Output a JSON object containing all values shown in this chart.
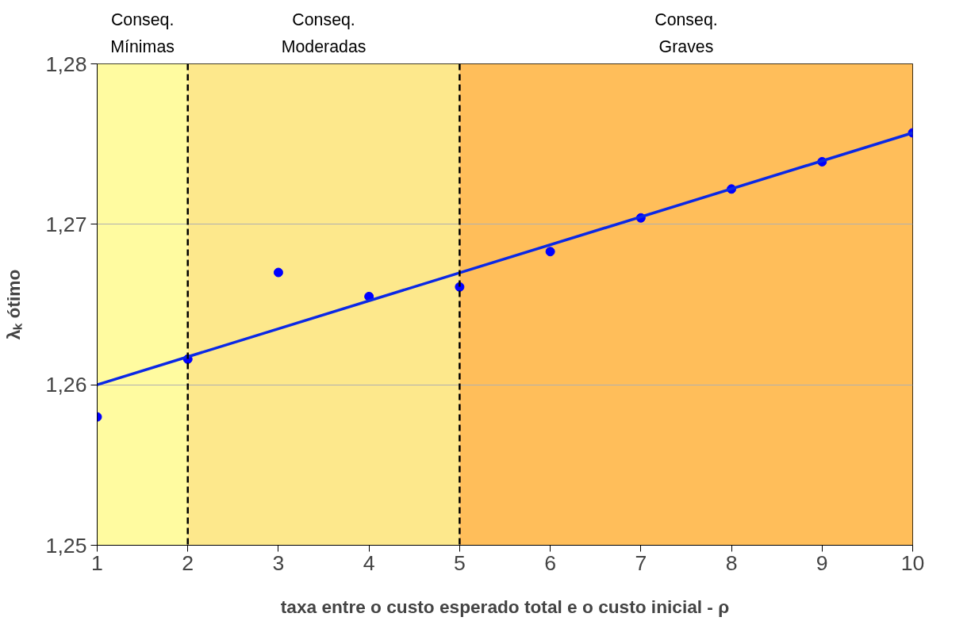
{
  "chart_data": {
    "type": "scatter",
    "xlabel": "taxa entre o custo esperado total e o custo inicial - ρ",
    "ylabel": "λₖ ótimo",
    "x": [
      1,
      2,
      3,
      4,
      5,
      6,
      7,
      8,
      9,
      10
    ],
    "series": [
      {
        "color": "#0000ff",
        "marker": "circle",
        "values": [
          1.258,
          1.2616,
          1.267,
          1.2655,
          1.2661,
          1.2683,
          1.2704,
          1.2722,
          1.2739,
          1.2757
        ]
      },
      {
        "type": "line",
        "color": "#0a28e6",
        "x": [
          1,
          10
        ],
        "values": [
          1.26,
          1.2757
        ]
      }
    ],
    "xlim": [
      1,
      10
    ],
    "ylim": [
      1.25,
      1.28
    ],
    "xticks": [
      1,
      2,
      3,
      4,
      5,
      6,
      7,
      8,
      9,
      10
    ],
    "yticks": [
      {
        "value": 1.25,
        "label": "1,25"
      },
      {
        "value": 1.26,
        "label": "1,26"
      },
      {
        "value": 1.27,
        "label": "1,27"
      },
      {
        "value": 1.28,
        "label": "1,28"
      }
    ],
    "grid": "y",
    "ref_lines": [
      {
        "axis": "x",
        "value": 2,
        "color": "#000000",
        "line_style": "dashed"
      },
      {
        "axis": "x",
        "value": 5,
        "color": "#000000",
        "line_style": "dashed"
      }
    ],
    "bands": [
      {
        "axis": "x",
        "from": 1,
        "to": 2,
        "label": "Conseq.\nMínimas",
        "color": "#fffba0"
      },
      {
        "axis": "x",
        "from": 2,
        "to": 5,
        "label": "Conseq.\nModeradas",
        "color": "#fde88c"
      },
      {
        "axis": "x",
        "from": 5,
        "to": 10,
        "label": "Conseq.\nGraves",
        "color": "#ffbe5a"
      }
    ]
  }
}
